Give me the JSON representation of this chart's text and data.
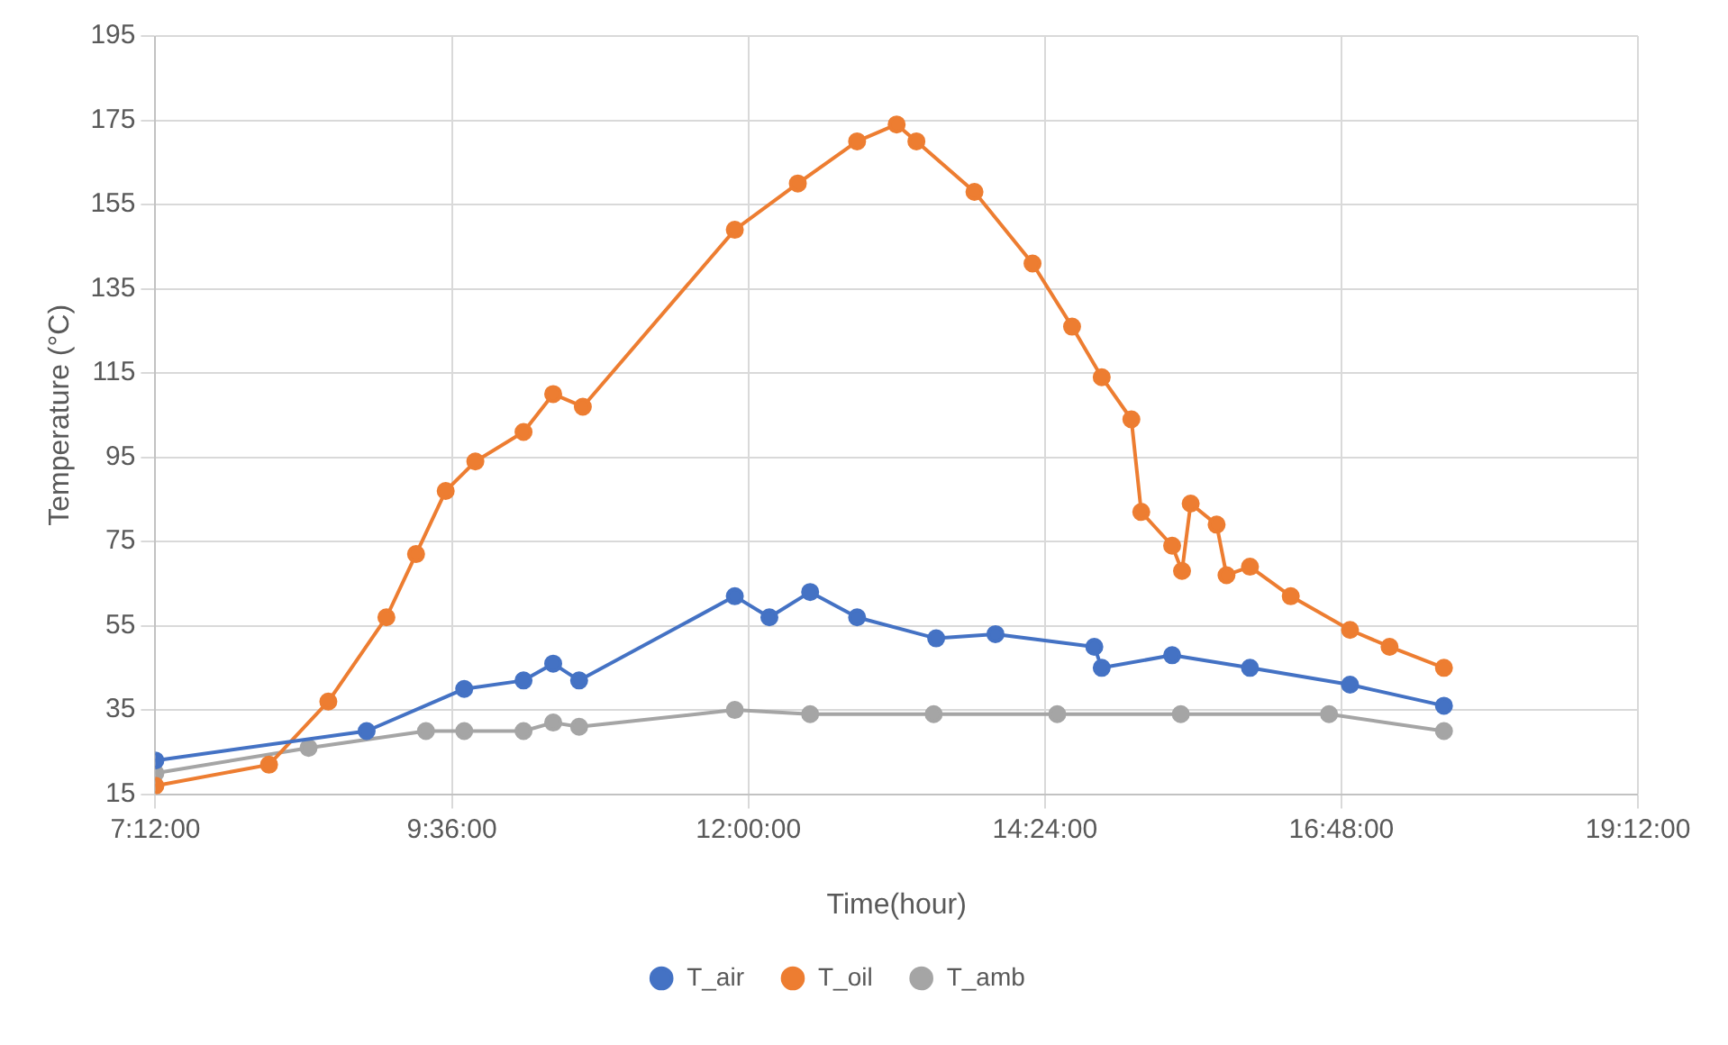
{
  "chart_data": {
    "type": "line",
    "xlabel": "Time(hour)",
    "ylabel": "Temperature (°C)",
    "xlim": [
      7.2,
      19.2
    ],
    "xticks": [
      {
        "value": 7.2,
        "label": "7:12:00"
      },
      {
        "value": 9.6,
        "label": "9:36:00"
      },
      {
        "value": 12,
        "label": "12:00:00"
      },
      {
        "value": 14.4,
        "label": "14:24:00"
      },
      {
        "value": 16.8,
        "label": "16:48:00"
      },
      {
        "value": 19.2,
        "label": "19:12:00"
      }
    ],
    "ylim": [
      15,
      195
    ],
    "yticks": [
      15,
      35,
      55,
      75,
      95,
      115,
      135,
      155,
      175,
      195
    ],
    "grid": true,
    "legend": "bottom",
    "marker": "circle",
    "line_style": "solid",
    "series": [
      {
        "name": "T_air",
        "color": "#4472c4",
        "x": [
          7.2,
          8.91,
          9.7,
          10.18,
          10.42,
          10.63,
          11.89,
          12.17,
          12.5,
          12.88,
          13.52,
          14,
          14.8,
          14.86,
          15.43,
          16.06,
          16.87,
          17.63
        ],
        "values": [
          23,
          30,
          40,
          42,
          46,
          42,
          62,
          57,
          63,
          57,
          52,
          53,
          50,
          45,
          48,
          45,
          41,
          36
        ]
      },
      {
        "name": "T_oil",
        "color": "#ed7d31",
        "x": [
          7.2,
          8.12,
          8.6,
          9.07,
          9.31,
          9.55,
          9.79,
          10.18,
          10.42,
          10.66,
          11.89,
          12.4,
          12.88,
          13.2,
          13.36,
          13.83,
          14.3,
          14.62,
          14.86,
          15.1,
          15.18,
          15.43,
          15.51,
          15.58,
          15.79,
          15.87,
          16.06,
          16.39,
          16.87,
          17.19,
          17.63
        ],
        "values": [
          17,
          22,
          37,
          57,
          72,
          87,
          94,
          101,
          110,
          107,
          149,
          160,
          170,
          174,
          170,
          158,
          141,
          126,
          114,
          104,
          82,
          74,
          68,
          84,
          79,
          67,
          69,
          62,
          54,
          50,
          45
        ]
      },
      {
        "name": "T_amb",
        "color": "#a5a5a5",
        "x": [
          7.2,
          8.44,
          9.39,
          9.7,
          10.18,
          10.42,
          10.63,
          11.89,
          12.5,
          13.5,
          14.5,
          15.5,
          16.7,
          17.63
        ],
        "values": [
          20,
          26,
          30,
          30,
          30,
          32,
          31,
          35,
          34,
          34,
          34,
          34,
          34,
          30
        ]
      }
    ]
  }
}
